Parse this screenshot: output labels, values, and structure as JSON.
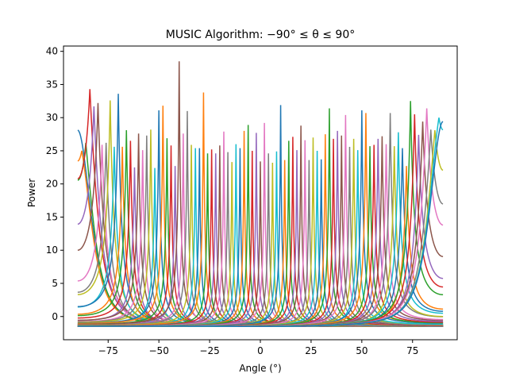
{
  "chart_data": {
    "type": "line",
    "title": "MUSIC Algorithm: −90$^\\circ\\leq\\theta\\leq 90^\\circ$",
    "title_display": "MUSIC Algorithm: −90° ≤ θ ≤ 90°",
    "xlabel": "Angle ($^\\circ$)",
    "xlabel_display": "Angle (°)",
    "ylabel": "Power",
    "xlim": [
      -97,
      97
    ],
    "ylim": [
      -3.5,
      40.8
    ],
    "x_ticks": [
      -75,
      -50,
      -25,
      0,
      25,
      50,
      75
    ],
    "x_tick_labels": [
      "−75",
      "−50",
      "−25",
      "0",
      "25",
      "50",
      "75"
    ],
    "y_ticks": [
      0,
      5,
      10,
      15,
      20,
      25,
      30,
      35,
      40
    ],
    "y_tick_labels": [
      "0",
      "5",
      "10",
      "15",
      "20",
      "25",
      "30",
      "35",
      "40"
    ],
    "grid": false,
    "legend": "none",
    "x_range": [
      -90,
      90
    ],
    "series_count": 91,
    "series_description": "Pseudospectrum power curves, one per steering angle from −90° to 90° in 2° steps; each curve peaks at its angle, baseline near −1.5.",
    "peak_angles": [
      -90,
      -88,
      -86,
      -84,
      -82,
      -80,
      -78,
      -76,
      -74,
      -72,
      -70,
      -68,
      -66,
      -64,
      -62,
      -60,
      -58,
      -56,
      -54,
      -52,
      -50,
      -48,
      -46,
      -44,
      -42,
      -40,
      -38,
      -36,
      -34,
      -32,
      -30,
      -28,
      -26,
      -24,
      -22,
      -20,
      -18,
      -16,
      -14,
      -12,
      -10,
      -8,
      -6,
      -4,
      -2,
      0,
      2,
      4,
      6,
      8,
      10,
      12,
      14,
      16,
      18,
      20,
      22,
      24,
      26,
      28,
      30,
      32,
      34,
      36,
      38,
      40,
      42,
      44,
      46,
      48,
      50,
      52,
      54,
      56,
      58,
      60,
      62,
      64,
      66,
      68,
      70,
      72,
      74,
      76,
      78,
      80,
      82,
      84,
      86,
      88,
      90
    ],
    "peak_powers": [
      28.1,
      25.0,
      26.2,
      34.3,
      31.7,
      32.2,
      25.9,
      26.2,
      32.6,
      25.6,
      33.6,
      25.6,
      28.1,
      26.5,
      22.5,
      27.6,
      25.1,
      27.3,
      28.2,
      22.4,
      31.1,
      31.8,
      26.9,
      25.8,
      22.7,
      38.5,
      27.6,
      31.0,
      25.9,
      25.4,
      25.4,
      33.8,
      24.6,
      25.2,
      24.6,
      25.8,
      27.9,
      24.8,
      23.3,
      26.0,
      25.4,
      28.0,
      28.9,
      25.0,
      27.7,
      23.4,
      29.2,
      24.6,
      23.2,
      24.9,
      31.9,
      23.6,
      26.5,
      27.1,
      25.1,
      28.8,
      26.6,
      23.6,
      27.0,
      25.0,
      23.7,
      27.5,
      31.4,
      26.8,
      28.0,
      27.3,
      30.4,
      25.6,
      26.8,
      25.1,
      31.1,
      30.7,
      25.7,
      25.9,
      26.8,
      27.2,
      26.0,
      30.7,
      25.7,
      27.8,
      25.4,
      22.7,
      32.5,
      30.5,
      27.4,
      29.4,
      31.4,
      28.2,
      28.1,
      30.0,
      29.4
    ],
    "baseline": -1.5,
    "colors": [
      "#1f77b4",
      "#ff7f0e",
      "#2ca02c",
      "#d62728",
      "#9467bd",
      "#8c564b",
      "#e377c2",
      "#7f7f7f",
      "#bcbd22",
      "#17becf"
    ]
  }
}
